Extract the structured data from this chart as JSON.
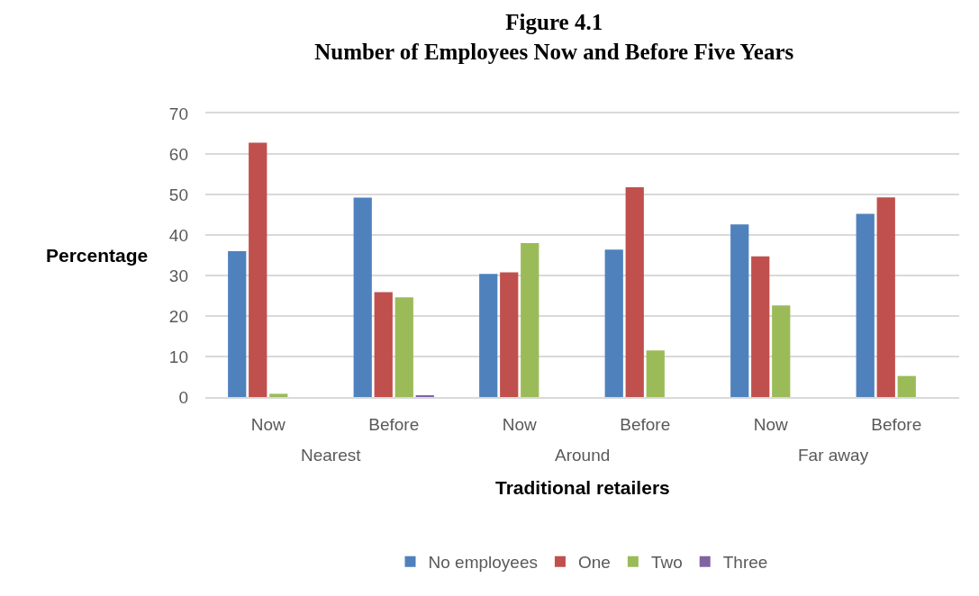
{
  "chart_data": {
    "type": "bar",
    "title": "Figure 4.1\nNumber of Employees Now and Before Five Years",
    "categories": [
      "Now",
      "Before",
      "Now",
      "Before",
      "Now",
      "Before"
    ],
    "annotations": [
      "Nearest",
      "Around",
      "Far away"
    ],
    "xlabel": "Traditional retailers",
    "ylabel": "Percentage",
    "series": [
      {
        "name": "No employees",
        "color": "#4f81bd",
        "values": [
          36.0,
          49.2,
          30.4,
          36.4,
          42.6,
          45.2
        ]
      },
      {
        "name": "One",
        "color": "#c0504d",
        "values": [
          62.8,
          25.9,
          30.8,
          51.8,
          34.7,
          49.3
        ]
      },
      {
        "name": "Two",
        "color": "#9bbb59",
        "values": [
          0.8,
          24.6,
          38.0,
          11.5,
          22.6,
          5.2
        ]
      },
      {
        "name": "Three",
        "color": "#8064a2",
        "values": [
          null,
          0.4,
          null,
          null,
          null,
          null
        ]
      }
    ],
    "ylim": [
      0,
      70
    ],
    "yticks": [
      0,
      10,
      20,
      30,
      40,
      50,
      60,
      70
    ],
    "grid": "y",
    "legend": "bottom"
  }
}
